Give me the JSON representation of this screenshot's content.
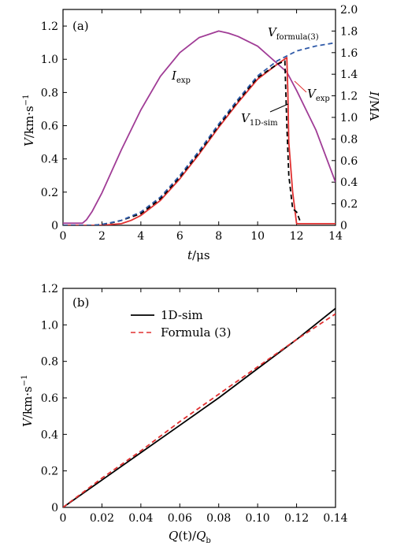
{
  "chart_data": [
    {
      "panel_label": "(a)",
      "type": "line",
      "xlabel": {
        "var": "t",
        "unit": "/μs"
      },
      "ylabel": {
        "var": "V",
        "unit": "/km·s",
        "sup": "−1"
      },
      "y2label": {
        "var": "I",
        "unit": "/MA"
      },
      "xlim": [
        0,
        14
      ],
      "ylim": [
        0,
        1.3
      ],
      "y2lim": [
        0,
        2.0
      ],
      "xticks": [
        "0",
        "2",
        "4",
        "6",
        "8",
        "10",
        "12",
        "14"
      ],
      "yticks": [
        "0",
        "0.2",
        "0.4",
        "0.6",
        "0.8",
        "1.0",
        "1.2"
      ],
      "y2ticks": [
        "0",
        "0.2",
        "0.4",
        "0.6",
        "0.8",
        "1.0",
        "1.2",
        "1.4",
        "1.6",
        "1.8",
        "2.0"
      ],
      "grid": false,
      "annotations": [
        {
          "text": "I",
          "sub": "exp"
        },
        {
          "text": "V",
          "sub": "formula(3)"
        },
        {
          "text": "V",
          "sub": "exp"
        },
        {
          "text": "V",
          "sub": "1D-sim"
        }
      ],
      "series": [
        {
          "color": "#a03c96",
          "style": "solid",
          "axis": "right",
          "x": [
            0,
            1,
            1.2,
            1.5,
            2,
            3,
            4,
            5,
            6,
            7,
            8,
            8.5,
            9,
            10,
            11,
            11.5,
            12,
            13,
            14
          ],
          "y": [
            0.02,
            0.02,
            0.05,
            0.13,
            0.3,
            0.7,
            1.07,
            1.38,
            1.6,
            1.74,
            1.8,
            1.78,
            1.75,
            1.66,
            1.5,
            1.42,
            1.25,
            0.88,
            0.4
          ]
        },
        {
          "color": "#e03030",
          "style": "solid",
          "axis": "left",
          "x": [
            0,
            2,
            2.5,
            3,
            3.5,
            4,
            5,
            6,
            7,
            8,
            9,
            10,
            11,
            11.5,
            11.55,
            11.6,
            11.8,
            12,
            12.2,
            14
          ],
          "y": [
            0,
            0,
            0.005,
            0.01,
            0.03,
            0.06,
            0.15,
            0.28,
            0.43,
            0.59,
            0.74,
            0.88,
            0.97,
            1.01,
            0.8,
            0.5,
            0.2,
            0.01,
            0.01,
            0.01
          ]
        },
        {
          "color": "#000000",
          "style": "dashed",
          "axis": "left",
          "x": [
            0,
            1.5,
            2,
            2.5,
            3,
            3.5,
            4,
            5,
            6,
            7,
            8,
            9,
            10,
            11,
            11.4,
            11.5,
            11.6,
            11.8,
            12,
            12.2
          ],
          "y": [
            0,
            0,
            0.005,
            0.015,
            0.03,
            0.05,
            0.07,
            0.16,
            0.29,
            0.44,
            0.6,
            0.75,
            0.89,
            0.97,
            0.99,
            0.6,
            0.3,
            0.1,
            0.08,
            0.02
          ]
        },
        {
          "color": "#2f5aa8",
          "style": "dashed",
          "axis": "left",
          "x": [
            0,
            1.5,
            2,
            3,
            4,
            5,
            6,
            7,
            8,
            9,
            10,
            11,
            12,
            13,
            14
          ],
          "y": [
            0,
            0,
            0.005,
            0.03,
            0.08,
            0.17,
            0.3,
            0.45,
            0.61,
            0.76,
            0.9,
            0.99,
            1.05,
            1.08,
            1.1
          ]
        }
      ]
    },
    {
      "panel_label": "(b)",
      "type": "line",
      "xlabel": {
        "var": "Q",
        "mid": "(t)/",
        "var2": "Q",
        "sub2": "b"
      },
      "ylabel": {
        "var": "V",
        "unit": "/km·s",
        "sup": "−1"
      },
      "xlim": [
        0,
        0.14
      ],
      "ylim": [
        0,
        1.2
      ],
      "xticks": [
        "0",
        "0.02",
        "0.04",
        "0.06",
        "0.08",
        "0.10",
        "0.12",
        "0.14"
      ],
      "yticks": [
        "0",
        "0.2",
        "0.4",
        "0.6",
        "0.8",
        "1.0",
        "1.2"
      ],
      "grid": false,
      "legend": "top-left",
      "series": [
        {
          "name": "1D-sim",
          "color": "#000000",
          "style": "solid",
          "x": [
            0,
            0.02,
            0.04,
            0.06,
            0.08,
            0.1,
            0.12,
            0.14
          ],
          "y": [
            0,
            0.15,
            0.3,
            0.45,
            0.6,
            0.76,
            0.92,
            1.09
          ]
        },
        {
          "name": "Formula (3)",
          "color": "#e03030",
          "style": "dashed",
          "x": [
            0,
            0.02,
            0.04,
            0.06,
            0.08,
            0.1,
            0.12,
            0.14
          ],
          "y": [
            0,
            0.16,
            0.31,
            0.47,
            0.62,
            0.77,
            0.92,
            1.06
          ]
        }
      ]
    }
  ]
}
